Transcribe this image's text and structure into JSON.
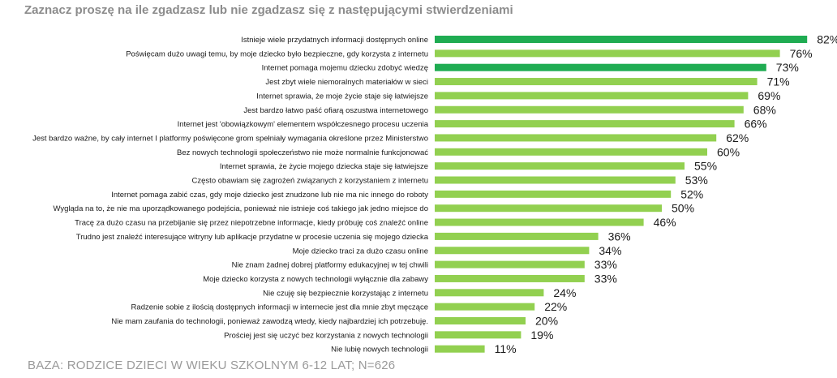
{
  "header": {
    "title": "Zaznacz proszę na ile zgadzasz lub nie zgadzasz się z następującymi stwierdzeniami"
  },
  "footer": {
    "base_note": "BAZA: RODZICE DZIECI W WIEKU SZKOLNYM 6-12 LAT; N=626"
  },
  "colors": {
    "highlight": "#1fac52",
    "bar": "#92d050"
  },
  "chart_data": {
    "type": "bar",
    "orientation": "horizontal",
    "title": "Zaznacz proszę na ile zgadzasz lub nie zgadzasz się z następującymi stwierdzeniami",
    "xlabel": "",
    "ylabel": "",
    "xlim": [
      0,
      100
    ],
    "grid": false,
    "categories": [
      "Istnieje wiele przydatnych informacji dostępnych online",
      "Poświęcam dużo uwagi temu, by moje dziecko było bezpieczne, gdy korzysta z internetu",
      "Internet pomaga mojemu dziecku zdobyć wiedzę",
      "Jest zbyt wiele niemoralnych materiałów w sieci",
      "Internet sprawia, że moje życie staje się łatwiejsze",
      "Jest bardzo łatwo paść ofiarą oszustwa internetowego",
      "Internet jest 'obowiązkowym' elementem współczesnego procesu uczenia",
      "Jest bardzo ważne, by cały internet I platformy poświęcone grom spełniały wymagania określone przez Ministerstwo",
      "Bez nowych technologii społeczeństwo nie może normalnie funkcjonować",
      "Internet sprawia, że życie mojego dziecka staje się łatwiejsze",
      "Często obawiam się zagrożeń związanych z korzystaniem z internetu",
      "Internet pomaga zabić czas, gdy moje dziecko jest znudzone lub nie ma nic innego do roboty",
      "Wygląda na to, że nie ma uporządkowanego podejścia, ponieważ nie istnieje coś takiego jak jedno miejsce do",
      "Tracę za dużo czasu na przebijanie się przez niepotrzebne informacje, kiedy próbuję coś znaleźć online",
      "Trudno jest znaleźć interesujące witryny lub aplikacje przydatne w procesie uczenia się mojego dziecka",
      "Moje dziecko traci za dużo czasu online",
      "Nie znam żadnej dobrej platformy edukacyjnej w tej chwili",
      "Moje dziecko korzysta z nowych technologii wyłącznie dla zabawy",
      "Nie czuję się bezpiecznie korzystając z internetu",
      "Radzenie sobie z ilością dostępnych informacji w internecie jest dla mnie zbyt męczące",
      "Nie mam zaufania do technologii, ponieważ zawodzą wtedy, kiedy najbardziej ich potrzebuję.",
      "Prościej jest się uczyć bez korzystania z nowych technologii",
      "Nie lubię nowych technologii"
    ],
    "values": [
      82,
      76,
      73,
      71,
      69,
      68,
      66,
      62,
      60,
      55,
      53,
      52,
      50,
      46,
      36,
      34,
      33,
      33,
      24,
      22,
      20,
      19,
      11
    ],
    "value_labels": [
      "82%",
      "76%",
      "73%",
      "71%",
      "69%",
      "68%",
      "66%",
      "62%",
      "60%",
      "55%",
      "53%",
      "52%",
      "50%",
      "46%",
      "36%",
      "34%",
      "33%",
      "33%",
      "24%",
      "22%",
      "20%",
      "19%",
      "11%"
    ],
    "highlighted": [
      true,
      false,
      true,
      false,
      false,
      false,
      false,
      false,
      false,
      false,
      false,
      false,
      false,
      false,
      false,
      false,
      false,
      false,
      false,
      false,
      false,
      false,
      false
    ]
  }
}
